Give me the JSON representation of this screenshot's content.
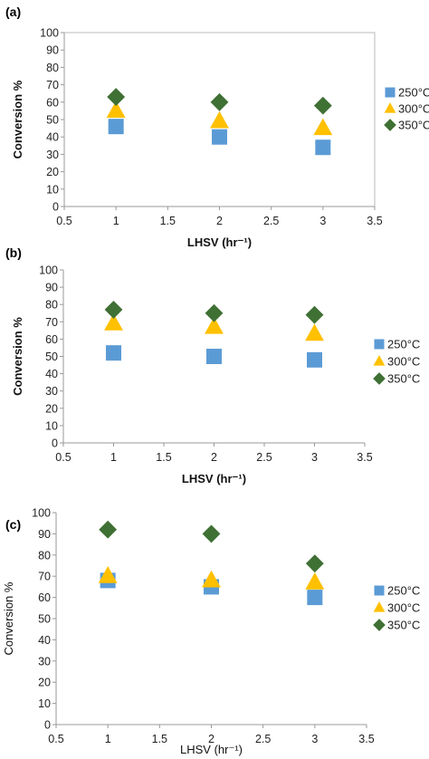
{
  "chart_data": [
    {
      "type": "scatter",
      "panel_label": "(a)",
      "xlabel": "LHSV (hr⁻¹)",
      "ylabel": "Conversion %",
      "xlim": [
        0.5,
        3.5
      ],
      "ylim": [
        0,
        100
      ],
      "xticks": [
        "0.5",
        "1",
        "1.5",
        "2",
        "2.5",
        "3",
        "3.5"
      ],
      "yticks": [
        "0",
        "10",
        "20",
        "30",
        "40",
        "50",
        "60",
        "70",
        "80",
        "90",
        "100"
      ],
      "grid": false,
      "legend": "right",
      "series": [
        {
          "name": "250°C",
          "marker": "square",
          "color": "#5b9bd5",
          "x": [
            1,
            2,
            3
          ],
          "y": [
            46,
            40,
            34
          ]
        },
        {
          "name": "300°C",
          "marker": "triangle",
          "color": "#ffc000",
          "x": [
            1,
            2,
            3
          ],
          "y": [
            55,
            49,
            45
          ]
        },
        {
          "name": "350°C",
          "marker": "diamond",
          "color": "#3f7034",
          "x": [
            1,
            2,
            3
          ],
          "y": [
            63,
            60,
            58
          ]
        }
      ]
    },
    {
      "type": "scatter",
      "panel_label": "(b)",
      "xlabel": "LHSV (hr⁻¹)",
      "ylabel": "Conversion %",
      "xlim": [
        0.5,
        3.5
      ],
      "ylim": [
        0,
        100
      ],
      "xticks": [
        "0.5",
        "1",
        "1.5",
        "2",
        "2.5",
        "3",
        "3.5"
      ],
      "yticks": [
        "0",
        "10",
        "20",
        "30",
        "40",
        "50",
        "60",
        "70",
        "80",
        "90",
        "100"
      ],
      "grid": false,
      "legend": "right",
      "series": [
        {
          "name": "250°C",
          "marker": "square",
          "color": "#5b9bd5",
          "x": [
            1,
            2,
            3
          ],
          "y": [
            52,
            50,
            48
          ]
        },
        {
          "name": "300°C",
          "marker": "triangle",
          "color": "#ffc000",
          "x": [
            1,
            2,
            3
          ],
          "y": [
            69,
            67,
            63
          ]
        },
        {
          "name": "350°C",
          "marker": "diamond",
          "color": "#3f7034",
          "x": [
            1,
            2,
            3
          ],
          "y": [
            77,
            75,
            74
          ]
        }
      ]
    },
    {
      "type": "scatter",
      "panel_label": "(c)",
      "xlabel": "LHSV (hr⁻¹)",
      "ylabel": "Conversion %",
      "xlim": [
        0.5,
        3.5
      ],
      "ylim": [
        0,
        100
      ],
      "xticks": [
        "0.5",
        "1",
        "1.5",
        "2",
        "2.5",
        "3",
        "3.5"
      ],
      "yticks": [
        "0",
        "10",
        "20",
        "30",
        "40",
        "50",
        "60",
        "70",
        "80",
        "90",
        "100"
      ],
      "grid": false,
      "legend": "right",
      "series": [
        {
          "name": "250°C",
          "marker": "square",
          "color": "#5b9bd5",
          "x": [
            1,
            2,
            3
          ],
          "y": [
            68,
            65,
            60
          ]
        },
        {
          "name": "300°C",
          "marker": "triangle",
          "color": "#ffc000",
          "x": [
            1,
            2,
            3
          ],
          "y": [
            70,
            68,
            67
          ]
        },
        {
          "name": "350°C",
          "marker": "diamond",
          "color": "#3f7034",
          "x": [
            1,
            2,
            3
          ],
          "y": [
            92,
            90,
            76
          ]
        }
      ]
    }
  ]
}
